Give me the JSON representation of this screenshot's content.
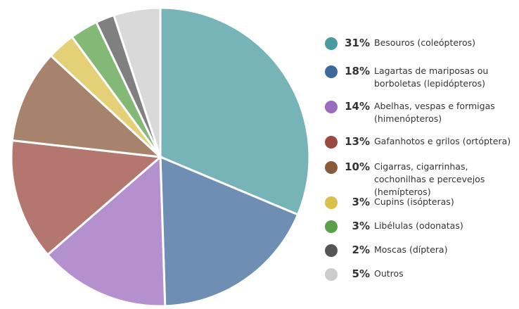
{
  "chart_data": {
    "type": "pie",
    "categories": [
      "Besouros (coleópteros)",
      "Lagartas de mariposas ou borboletas (lepidópteros)",
      "Abelhas, vespas e formigas (himenópteros)",
      "Gafanhotos e grilos (ortóptera)",
      "Cigarras, cigarrinhas, cochonilhas e percevejos (hemípteros)",
      "Cupins (isópteras)",
      "Libélulas (odonatas)",
      "Moscas (díptera)",
      "Outros"
    ],
    "values": [
      31,
      18,
      14,
      13,
      10,
      3,
      3,
      2,
      5
    ],
    "value_labels": [
      "31%",
      "18%",
      "14%",
      "13%",
      "10%",
      "3%",
      "3%",
      "2%",
      "5%"
    ],
    "colors": [
      "#4a9ba0",
      "#3d6a9a",
      "#9b6bbf",
      "#9a4a40",
      "#8a5a3c",
      "#d9c04a",
      "#5aa04a",
      "#555555",
      "#cccccc"
    ]
  }
}
